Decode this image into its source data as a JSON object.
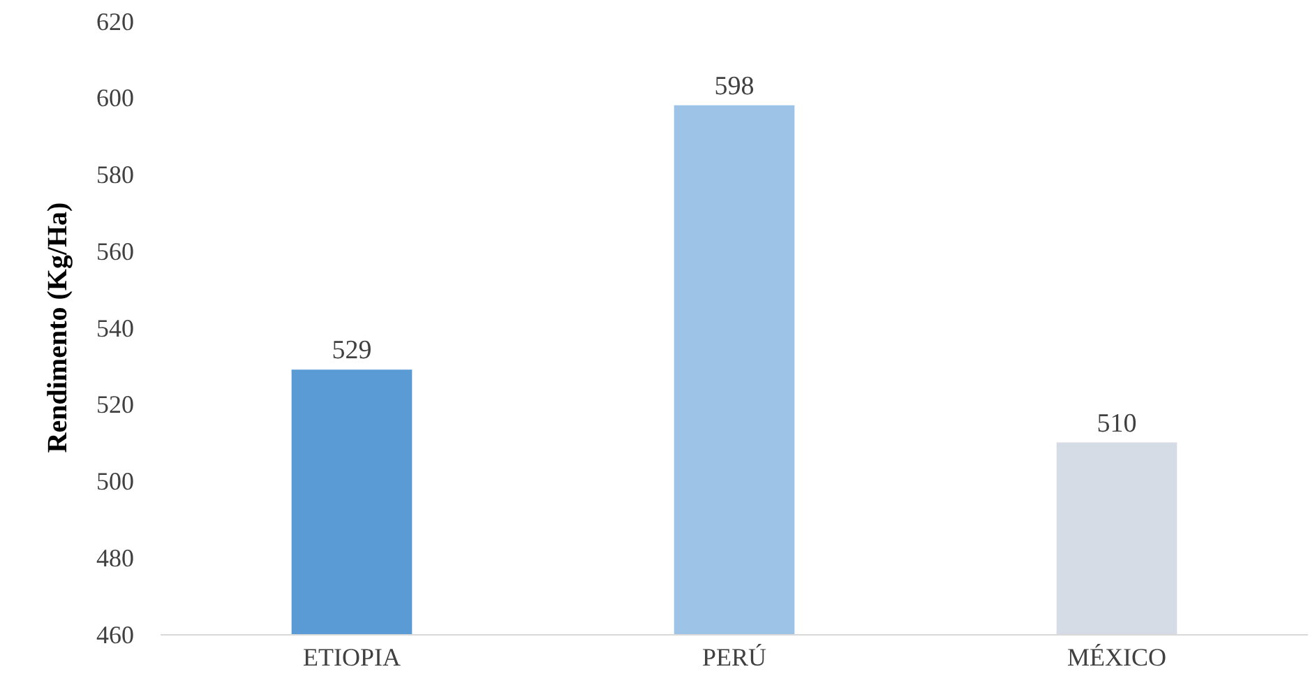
{
  "chart_data": {
    "type": "bar",
    "ylabel": "Rendimento (Kg/Ha)",
    "categories": [
      "ETIOPIA",
      "PERÚ",
      "MÉXICO"
    ],
    "values": [
      529,
      598,
      510
    ],
    "colors": [
      "#5b9bd5",
      "#9dc3e6",
      "#d6dce5"
    ],
    "ylim": [
      460,
      620
    ],
    "yticks": [
      460,
      480,
      500,
      520,
      540,
      560,
      580,
      600,
      620
    ],
    "data_labels": true
  }
}
